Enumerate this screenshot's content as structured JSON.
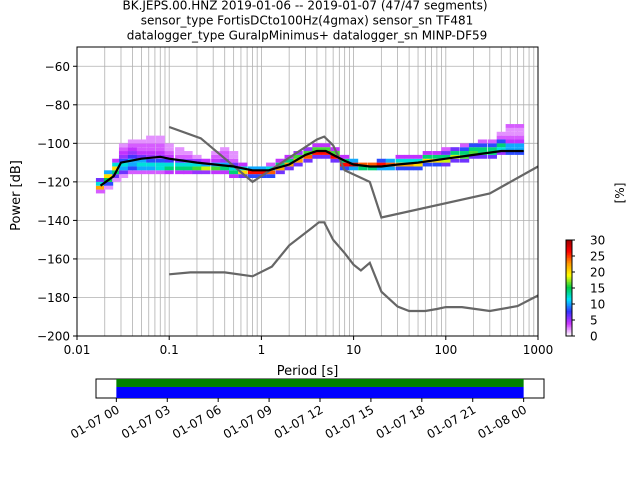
{
  "title_lines": [
    "BK.JEPS.00.HNZ   2019-01-06 -- 2019-01-07  (47/47 segments)",
    "sensor_type FortisDCto100Hz(4gmax) sensor_sn TF481",
    "datalogger_type GuralpMinimus+ datalogger_sn MINP-DF59"
  ],
  "chart_data": [
    {
      "type": "heatmap",
      "title": "BK.JEPS.00.HNZ   2019-01-06 -- 2019-01-07  (47/47 segments)",
      "xlabel": "Period [s]",
      "ylabel": "Power [dB]",
      "x_scale": "log",
      "xlim": [
        0.01,
        1000
      ],
      "ylim": [
        -200,
        -50
      ],
      "x_ticks": [
        0.01,
        0.1,
        1,
        10,
        100,
        1000
      ],
      "x_tick_labels": [
        "0.01",
        "0.1",
        "1",
        "10",
        "100",
        "1000"
      ],
      "y_ticks": [
        -200,
        -180,
        -160,
        -140,
        -120,
        -100,
        -80,
        -60
      ],
      "y_tick_labels": [
        "−200",
        "−180",
        "−160",
        "−140",
        "−120",
        "−100",
        "−80",
        "−60"
      ],
      "grid": true,
      "colorbar": {
        "label": "[%]",
        "range": [
          0,
          30
        ],
        "ticks": [
          0,
          5,
          10,
          15,
          20,
          25,
          30
        ],
        "tick_labels": [
          "0",
          "5",
          "10",
          "15",
          "20",
          "25",
          "30"
        ],
        "colormap": [
          "#ffffff",
          "#cc33ff",
          "#3333ff",
          "#00e5ff",
          "#00cc44",
          "#ffff00",
          "#ff9900",
          "#ff0000",
          "#990000"
        ]
      },
      "series": [
        {
          "name": "",
          "role": "mean",
          "color": "#000000",
          "x": [
            0.018,
            0.025,
            0.03,
            0.05,
            0.08,
            0.1,
            0.2,
            0.5,
            0.8,
            1.2,
            2,
            3,
            4,
            5,
            6,
            8,
            10,
            15,
            20,
            30,
            50,
            100,
            200,
            400,
            700
          ],
          "y": [
            -122,
            -117,
            -110,
            -108,
            -107,
            -108,
            -110,
            -112,
            -114,
            -114,
            -111,
            -106,
            -104,
            -104,
            -106,
            -109,
            -111,
            -112,
            -112,
            -111,
            -110,
            -108,
            -106,
            -104,
            -104
          ]
        },
        {
          "name": "",
          "role": "reference-high",
          "color": "#666666",
          "x": [
            0.1,
            0.22,
            0.8,
            4,
            4.8,
            6,
            8,
            15,
            20,
            300,
            1000
          ],
          "y": [
            -91.5,
            -97.4,
            -120,
            -98,
            -96.5,
            -101,
            -114,
            -120,
            -138.5,
            -126,
            -112
          ]
        },
        {
          "name": "",
          "role": "reference-low",
          "color": "#666666",
          "x": [
            0.1,
            0.17,
            0.4,
            0.8,
            1.3,
            2,
            3.5,
            4.2,
            4.8,
            6,
            8,
            10,
            12,
            15,
            20,
            30,
            40,
            60,
            80,
            100,
            150,
            300,
            600,
            1000
          ],
          "y": [
            -168,
            -167,
            -167,
            -169,
            -164,
            -153,
            -144,
            -141,
            -141,
            -150,
            -157,
            -163,
            -166,
            -162,
            -177,
            -184.7,
            -187,
            -187,
            -186,
            -185,
            -185,
            -187,
            -184.5,
            -179
          ]
        }
      ],
      "density_cells": [
        {
          "x": 0.018,
          "y": [
            -126,
            -118
          ],
          "pct": [
            3,
            22,
            12,
            6
          ]
        },
        {
          "x": 0.022,
          "y": [
            -124,
            -114
          ],
          "pct": [
            2,
            8,
            15,
            20,
            10
          ]
        },
        {
          "x": 0.027,
          "y": [
            -120,
            -108
          ],
          "pct": [
            2,
            6,
            14,
            20,
            12,
            4
          ]
        },
        {
          "x": 0.032,
          "y": [
            -118,
            -100
          ],
          "pct": [
            2,
            6,
            10,
            12,
            8,
            5,
            4,
            3,
            2
          ]
        },
        {
          "x": 0.04,
          "y": [
            -116,
            -98
          ],
          "pct": [
            3,
            8,
            10,
            10,
            7,
            5,
            4,
            3,
            2
          ]
        },
        {
          "x": 0.05,
          "y": [
            -116,
            -98
          ],
          "pct": [
            3,
            10,
            12,
            10,
            6,
            4,
            3,
            3,
            2
          ]
        },
        {
          "x": 0.063,
          "y": [
            -116,
            -96
          ],
          "pct": [
            3,
            10,
            12,
            8,
            5,
            4,
            3,
            3,
            2,
            2
          ]
        },
        {
          "x": 0.08,
          "y": [
            -116,
            -96
          ],
          "pct": [
            3,
            12,
            12,
            8,
            5,
            4,
            3,
            3,
            2,
            2
          ]
        },
        {
          "x": 0.1,
          "y": [
            -116,
            -100
          ],
          "pct": [
            4,
            14,
            12,
            7,
            4,
            3,
            2,
            2
          ]
        },
        {
          "x": 0.13,
          "y": [
            -116,
            -102
          ],
          "pct": [
            4,
            14,
            12,
            6,
            3,
            2,
            2
          ]
        },
        {
          "x": 0.16,
          "y": [
            -116,
            -104
          ],
          "pct": [
            4,
            14,
            12,
            5,
            3,
            2
          ]
        },
        {
          "x": 0.2,
          "y": [
            -116,
            -106
          ],
          "pct": [
            5,
            16,
            12,
            5,
            2
          ]
        },
        {
          "x": 0.25,
          "y": [
            -116,
            -108
          ],
          "pct": [
            5,
            18,
            10,
            4
          ]
        },
        {
          "x": 0.32,
          "y": [
            -116,
            -104
          ],
          "pct": [
            4,
            16,
            10,
            4,
            3,
            2
          ]
        },
        {
          "x": 0.4,
          "y": [
            -116,
            -102
          ],
          "pct": [
            4,
            14,
            10,
            5,
            3,
            3,
            2
          ]
        },
        {
          "x": 0.5,
          "y": [
            -118,
            -104
          ],
          "pct": [
            4,
            14,
            12,
            6,
            3,
            2,
            2
          ]
        },
        {
          "x": 0.63,
          "y": [
            -118,
            -110
          ],
          "pct": [
            6,
            20,
            12,
            4
          ]
        },
        {
          "x": 0.8,
          "y": [
            -118,
            -112
          ],
          "pct": [
            8,
            26,
            10
          ]
        },
        {
          "x": 1,
          "y": [
            -118,
            -112
          ],
          "pct": [
            8,
            26,
            10
          ]
        },
        {
          "x": 1.26,
          "y": [
            -118,
            -110
          ],
          "pct": [
            8,
            24,
            12,
            3
          ]
        },
        {
          "x": 1.6,
          "y": [
            -116,
            -108
          ],
          "pct": [
            6,
            22,
            14,
            4
          ]
        },
        {
          "x": 2,
          "y": [
            -114,
            -106
          ],
          "pct": [
            6,
            22,
            14,
            4
          ]
        },
        {
          "x": 2.5,
          "y": [
            -112,
            -104
          ],
          "pct": [
            6,
            22,
            16,
            5
          ]
        },
        {
          "x": 3.2,
          "y": [
            -110,
            -102
          ],
          "pct": [
            6,
            24,
            16,
            5
          ]
        },
        {
          "x": 4,
          "y": [
            -108,
            -100
          ],
          "pct": [
            6,
            26,
            16,
            4
          ]
        },
        {
          "x": 5,
          "y": [
            -108,
            -100
          ],
          "pct": [
            6,
            26,
            16,
            4
          ]
        },
        {
          "x": 6.3,
          "y": [
            -110,
            -102
          ],
          "pct": [
            6,
            26,
            16,
            4
          ]
        },
        {
          "x": 8,
          "y": [
            -114,
            -106
          ],
          "pct": [
            8,
            26,
            14,
            4
          ]
        },
        {
          "x": 10,
          "y": [
            -114,
            -108
          ],
          "pct": [
            10,
            28,
            10
          ]
        },
        {
          "x": 12.6,
          "y": [
            -114,
            -110
          ],
          "pct": [
            14,
            24
          ]
        },
        {
          "x": 16,
          "y": [
            -114,
            -110
          ],
          "pct": [
            14,
            24
          ]
        },
        {
          "x": 20,
          "y": [
            -114,
            -108
          ],
          "pct": [
            10,
            26,
            8
          ]
        },
        {
          "x": 25,
          "y": [
            -114,
            -108
          ],
          "pct": [
            10,
            24,
            10
          ]
        },
        {
          "x": 32,
          "y": [
            -114,
            -106
          ],
          "pct": [
            8,
            22,
            12,
            4
          ]
        },
        {
          "x": 40,
          "y": [
            -114,
            -106
          ],
          "pct": [
            8,
            22,
            12,
            4
          ]
        },
        {
          "x": 50,
          "y": [
            -114,
            -106
          ],
          "pct": [
            8,
            20,
            12,
            4
          ]
        },
        {
          "x": 63,
          "y": [
            -112,
            -104
          ],
          "pct": [
            8,
            20,
            14,
            4
          ]
        },
        {
          "x": 80,
          "y": [
            -112,
            -104
          ],
          "pct": [
            8,
            20,
            14,
            4
          ]
        },
        {
          "x": 100,
          "y": [
            -112,
            -102
          ],
          "pct": [
            6,
            18,
            14,
            6,
            3
          ]
        },
        {
          "x": 126,
          "y": [
            -110,
            -102
          ],
          "pct": [
            6,
            18,
            14,
            6
          ]
        },
        {
          "x": 160,
          "y": [
            -110,
            -100
          ],
          "pct": [
            6,
            16,
            14,
            8,
            3
          ]
        },
        {
          "x": 200,
          "y": [
            -108,
            -100
          ],
          "pct": [
            6,
            16,
            14,
            8
          ]
        },
        {
          "x": 250,
          "y": [
            -108,
            -98
          ],
          "pct": [
            6,
            14,
            14,
            8,
            3
          ]
        },
        {
          "x": 320,
          "y": [
            -108,
            -98
          ],
          "pct": [
            6,
            14,
            14,
            8,
            3
          ]
        },
        {
          "x": 400,
          "y": [
            -106,
            -94
          ],
          "pct": [
            5,
            12,
            14,
            8,
            3,
            2
          ]
        },
        {
          "x": 500,
          "y": [
            -106,
            -90
          ],
          "pct": [
            8,
            10,
            10,
            4,
            3,
            2,
            2,
            3
          ]
        },
        {
          "x": 630,
          "y": [
            -106,
            -90
          ],
          "pct": [
            8,
            10,
            10,
            4,
            3,
            2,
            2,
            3
          ]
        }
      ]
    },
    {
      "type": "bar",
      "role": "data-coverage timeline",
      "x_tick_labels": [
        "01-07 00",
        "01-07 03",
        "01-07 06",
        "01-07 09",
        "01-07 12",
        "01-07 15",
        "01-07 18",
        "01-07 21",
        "01-08 00"
      ],
      "x_range_hours": [
        -1.2,
        25.2
      ],
      "coverage": {
        "start_hour": 0,
        "end_hour": 24
      },
      "colors": {
        "available": "#008000",
        "used": "#0000ff"
      }
    }
  ]
}
